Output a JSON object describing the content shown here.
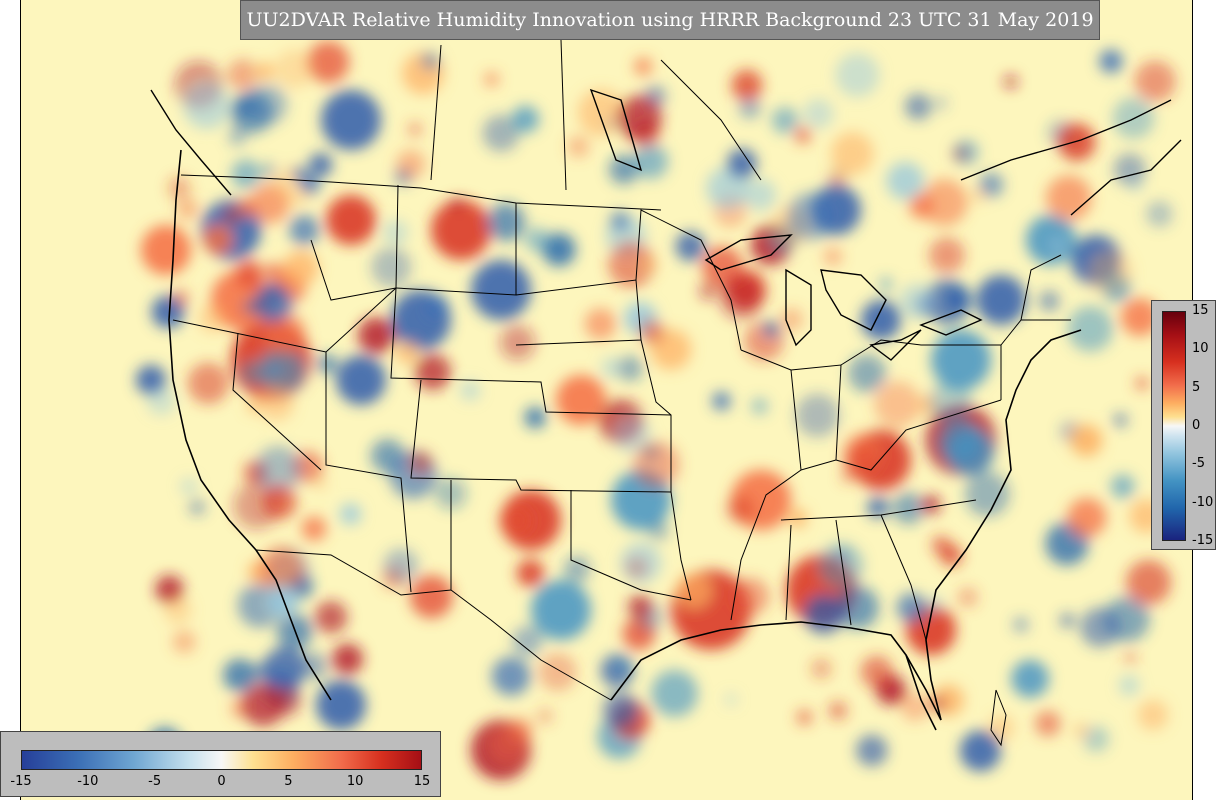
{
  "title": "UU2DVAR Relative Humidity Innovation using HRRR Background 23 UTC 31 May 2019",
  "colorbar_vertical": {
    "labels": [
      "15",
      "10",
      "5",
      "0",
      "-5",
      "-10",
      "-15"
    ],
    "min": -15,
    "max": 15
  },
  "colorbar_horizontal": {
    "labels": [
      "-15",
      "-10",
      "-5",
      "0",
      "5",
      "10",
      "15"
    ],
    "min": -15,
    "max": 15
  },
  "colors": {
    "background_neutral": "#fdf6bd",
    "positive": "#d7301f",
    "negative": "#2f5cab",
    "title_bg": "#8c8c8c",
    "colorbar_bg": "#bdbdbd"
  }
}
